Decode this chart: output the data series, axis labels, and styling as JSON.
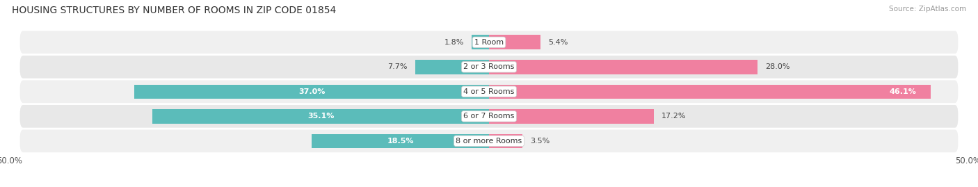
{
  "title": "HOUSING STRUCTURES BY NUMBER OF ROOMS IN ZIP CODE 01854",
  "source": "Source: ZipAtlas.com",
  "categories": [
    "1 Room",
    "2 or 3 Rooms",
    "4 or 5 Rooms",
    "6 or 7 Rooms",
    "8 or more Rooms"
  ],
  "owner_values": [
    1.8,
    7.7,
    37.0,
    35.1,
    18.5
  ],
  "renter_values": [
    5.4,
    28.0,
    46.1,
    17.2,
    3.5
  ],
  "owner_color": "#5bbcba",
  "renter_color": "#f080a0",
  "axis_limit": 50.0,
  "bar_height": 0.58,
  "title_fontsize": 10,
  "source_fontsize": 7.5,
  "legend_fontsize": 8,
  "value_fontsize": 8,
  "cat_fontsize": 8
}
